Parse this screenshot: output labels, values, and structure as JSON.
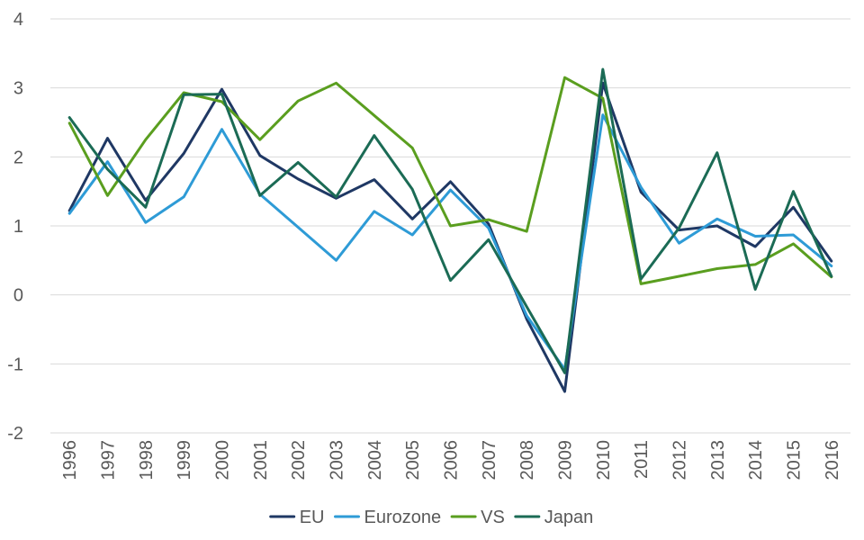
{
  "chart_data": {
    "type": "line",
    "title": "",
    "xlabel": "",
    "ylabel": "",
    "categories": [
      "1996",
      "1997",
      "1998",
      "1999",
      "2000",
      "2001",
      "2002",
      "2003",
      "2004",
      "2005",
      "2006",
      "2007",
      "2008",
      "2009",
      "2010",
      "2011",
      "2012",
      "2013",
      "2014",
      "2015",
      "2016"
    ],
    "ylim": [
      -2,
      4
    ],
    "yticks": [
      "-2",
      "-1",
      "0",
      "1",
      "2",
      "3",
      "4"
    ],
    "grid": true,
    "legend_position": "bottom",
    "series": [
      {
        "name": "EU",
        "color": "#1f3864",
        "values": [
          1.22,
          2.27,
          1.37,
          2.05,
          2.98,
          2.02,
          1.68,
          1.4,
          1.67,
          1.1,
          1.64,
          1.03,
          -0.35,
          -1.4,
          3.07,
          1.49,
          0.94,
          1.0,
          0.7,
          1.27,
          0.49
        ]
      },
      {
        "name": "Eurozone",
        "color": "#2e9bd6",
        "values": [
          1.18,
          1.93,
          1.05,
          1.42,
          2.4,
          1.46,
          0.98,
          0.5,
          1.21,
          0.87,
          1.52,
          0.97,
          -0.3,
          -1.08,
          2.61,
          1.56,
          0.75,
          1.1,
          0.85,
          0.87,
          0.42
        ]
      },
      {
        "name": "VS",
        "color": "#5a9e1f",
        "values": [
          2.49,
          1.44,
          2.25,
          2.93,
          2.8,
          2.25,
          2.81,
          3.07,
          2.6,
          2.13,
          1.0,
          1.09,
          0.92,
          3.15,
          2.85,
          0.16,
          0.27,
          0.38,
          0.44,
          0.74,
          0.26
        ]
      },
      {
        "name": "Japan",
        "color": "#1b6b55",
        "values": [
          2.57,
          1.82,
          1.27,
          2.9,
          2.91,
          1.44,
          1.92,
          1.42,
          2.31,
          1.53,
          0.21,
          0.8,
          -0.17,
          -1.13,
          3.27,
          0.23,
          0.97,
          2.06,
          0.08,
          1.5,
          0.27
        ]
      }
    ]
  }
}
